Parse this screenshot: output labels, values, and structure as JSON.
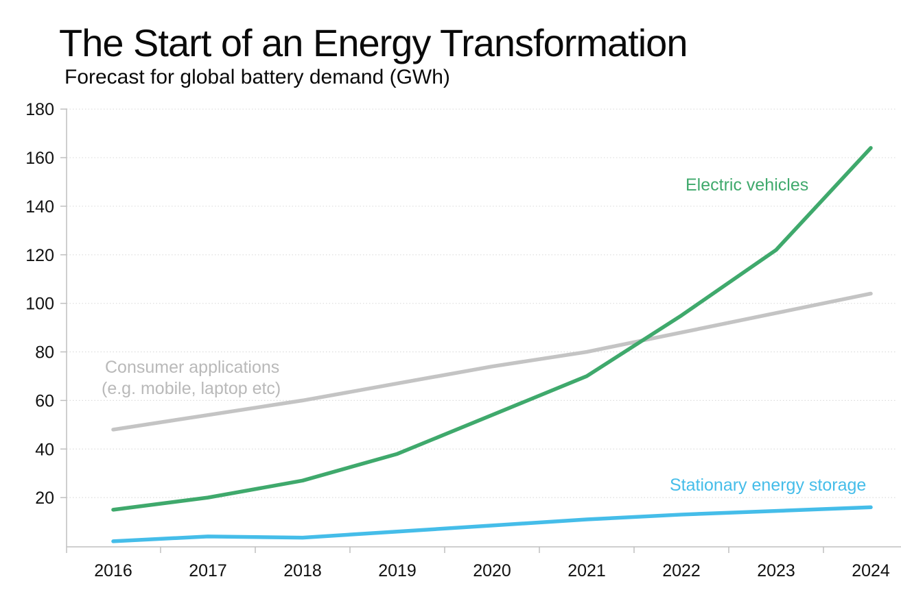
{
  "chart_data": {
    "type": "line",
    "title": "The Start of an Energy Transformation",
    "subtitle": "Forecast for global battery demand (GWh)",
    "x_categories": [
      "2016",
      "2017",
      "2018",
      "2019",
      "2020",
      "2021",
      "2022",
      "2023",
      "2024"
    ],
    "ylim": [
      0,
      180
    ],
    "yticks": [
      20,
      40,
      60,
      80,
      100,
      120,
      140,
      160,
      180
    ],
    "grid": "horizontal dotted gridlines, light gray",
    "legend_position": "inline labels next to lines",
    "series": [
      {
        "name": "Consumer applications (e.g. mobile, laptop etc)",
        "color": "#c4c4c4",
        "values": [
          48,
          54,
          60,
          67,
          74,
          80,
          88,
          96,
          104
        ]
      },
      {
        "name": "Stationary energy storage",
        "color": "#45bde9",
        "values": [
          2,
          4,
          3.5,
          6,
          8.5,
          11,
          13,
          14.5,
          16
        ]
      },
      {
        "name": "Electric vehicles",
        "color": "#3fa96c",
        "values": [
          15,
          20,
          27,
          38,
          54,
          70,
          95,
          122,
          164
        ]
      }
    ],
    "annotations": {
      "ev": {
        "text": "Electric vehicles",
        "color": "#3fa96c"
      },
      "consumer": {
        "line1": "Consumer applications",
        "line2": "(e.g. mobile, laptop etc)",
        "color": "#b9b9b9"
      },
      "storage": {
        "text": "Stationary energy storage",
        "color": "#45bde9"
      }
    }
  }
}
